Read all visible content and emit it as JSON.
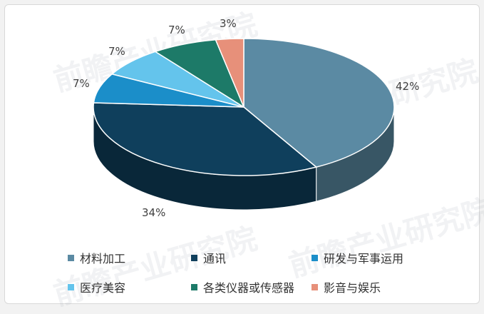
{
  "chart_data": {
    "type": "pie",
    "title": "",
    "categories": [
      "材料加工",
      "通讯",
      "研发与军事运用",
      "医疗美容",
      "各类仪器或传感器",
      "影音与娱乐"
    ],
    "values": [
      42,
      34,
      7,
      7,
      7,
      3
    ],
    "value_labels": [
      "42%",
      "34%",
      "7%",
      "7%",
      "7%",
      "3%"
    ],
    "colors": [
      "#5b8aa3",
      "#0f3f5c",
      "#1b8ec9",
      "#64c4ec",
      "#1d7a68",
      "#e7907a"
    ],
    "style": "3d",
    "legend_position": "bottom"
  },
  "watermark": "前瞻产业研究院"
}
